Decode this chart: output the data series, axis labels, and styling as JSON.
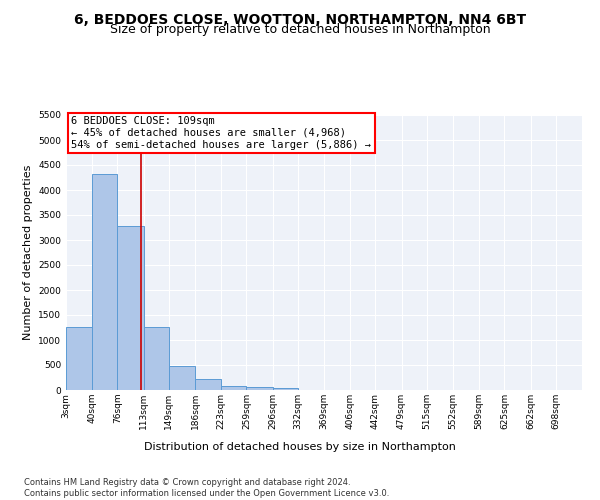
{
  "title": "6, BEDDOES CLOSE, WOOTTON, NORTHAMPTON, NN4 6BT",
  "subtitle": "Size of property relative to detached houses in Northampton",
  "xlabel": "Distribution of detached houses by size in Northampton",
  "ylabel": "Number of detached properties",
  "bar_color": "#aec6e8",
  "bar_edge_color": "#5b9bd5",
  "background_color": "#eef2f9",
  "grid_color": "#ffffff",
  "annotation_text": "6 BEDDOES CLOSE: 109sqm\n← 45% of detached houses are smaller (4,968)\n54% of semi-detached houses are larger (5,886) →",
  "vline_x": 109,
  "vline_color": "#cc0000",
  "bin_edges": [
    3,
    40,
    76,
    113,
    149,
    186,
    223,
    259,
    296,
    332,
    369,
    406,
    442,
    479,
    515,
    552,
    589,
    625,
    662,
    698,
    735
  ],
  "bar_values": [
    1260,
    4330,
    3280,
    1270,
    480,
    220,
    80,
    65,
    45,
    0,
    0,
    0,
    0,
    0,
    0,
    0,
    0,
    0,
    0,
    0
  ],
  "ylim": [
    0,
    5500
  ],
  "yticks": [
    0,
    500,
    1000,
    1500,
    2000,
    2500,
    3000,
    3500,
    4000,
    4500,
    5000,
    5500
  ],
  "footer": "Contains HM Land Registry data © Crown copyright and database right 2024.\nContains public sector information licensed under the Open Government Licence v3.0.",
  "title_fontsize": 10,
  "subtitle_fontsize": 9,
  "xlabel_fontsize": 8,
  "ylabel_fontsize": 8,
  "tick_fontsize": 6.5,
  "annotation_fontsize": 7.5,
  "footer_fontsize": 6
}
